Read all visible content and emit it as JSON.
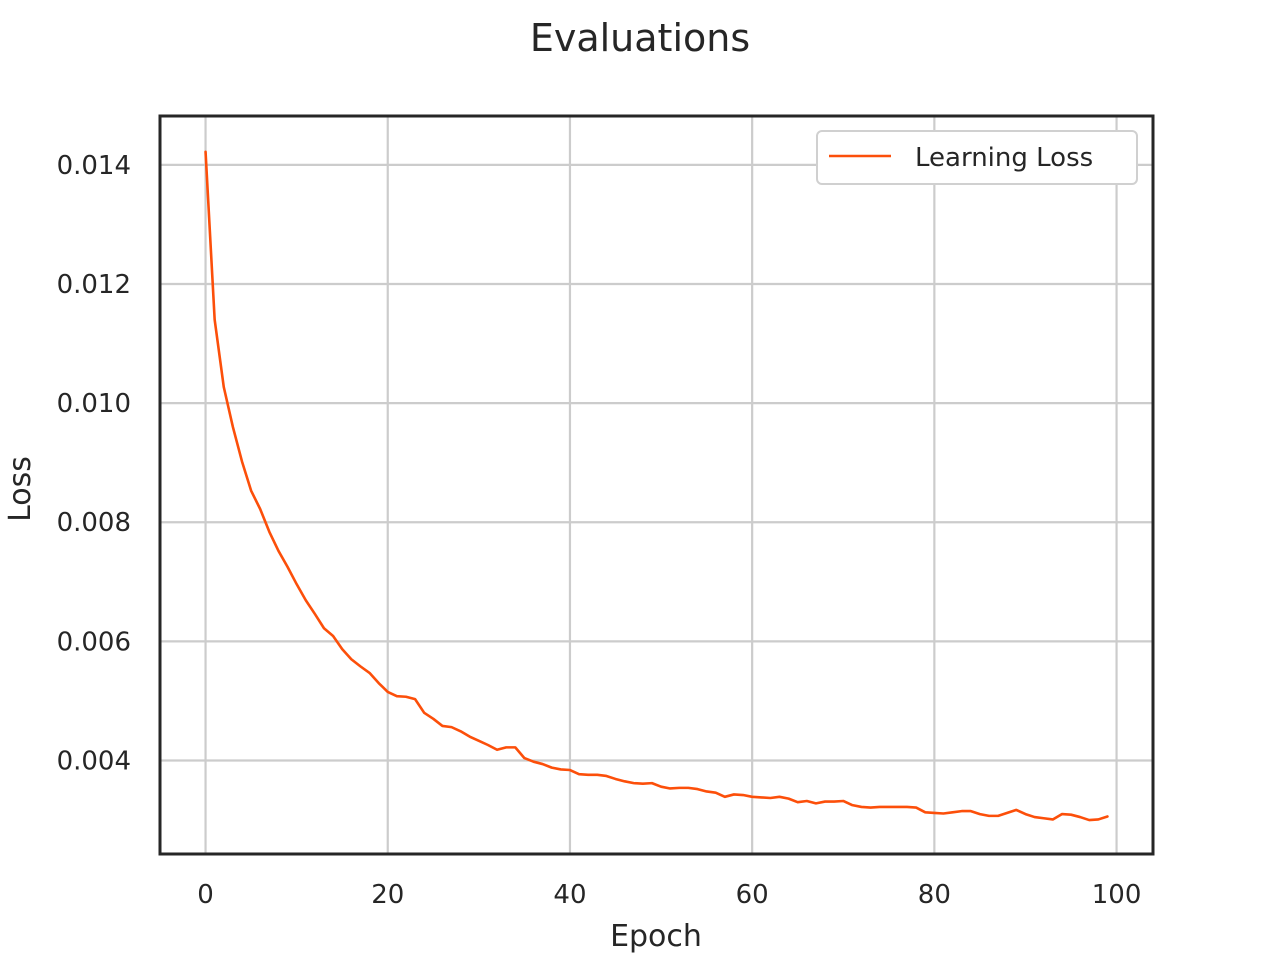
{
  "colors": {
    "series": "#fc4f0a",
    "text": "#262626",
    "grid": "#cccccc",
    "axes": "#262626"
  },
  "chart_data": {
    "type": "line",
    "title": "Evaluations",
    "xlabel": "Epoch",
    "ylabel": "Loss",
    "xlim": [
      -5,
      104
    ],
    "ylim": [
      0.00243,
      0.01482
    ],
    "xticks": [
      0,
      20,
      40,
      60,
      80,
      100
    ],
    "xtick_labels": [
      "0",
      "20",
      "40",
      "60",
      "80",
      "100"
    ],
    "yticks": [
      0.004,
      0.006,
      0.008,
      0.01,
      0.012,
      0.014
    ],
    "ytick_labels": [
      "0.004",
      "0.006",
      "0.008",
      "0.010",
      "0.012",
      "0.014"
    ],
    "grid": true,
    "legend_position": "top-right",
    "series": [
      {
        "name": "Learning Loss",
        "x": [
          0,
          1,
          2,
          3,
          4,
          5,
          6,
          7,
          8,
          9,
          10,
          11,
          12,
          13,
          14,
          15,
          16,
          17,
          18,
          19,
          20,
          21,
          22,
          23,
          24,
          25,
          26,
          27,
          28,
          29,
          30,
          31,
          32,
          33,
          34,
          35,
          36,
          37,
          38,
          39,
          40,
          41,
          42,
          43,
          44,
          45,
          46,
          47,
          48,
          49,
          50,
          51,
          52,
          53,
          54,
          55,
          56,
          57,
          58,
          59,
          60,
          61,
          62,
          63,
          64,
          65,
          66,
          67,
          68,
          69,
          70,
          71,
          72,
          73,
          74,
          75,
          76,
          77,
          78,
          79,
          80,
          81,
          82,
          83,
          84,
          85,
          86,
          87,
          88,
          89,
          90,
          91,
          92,
          93,
          94,
          95,
          96,
          97,
          98,
          99
        ],
        "values": [
          0.01422,
          0.0114,
          0.01027,
          0.0096,
          0.00902,
          0.00853,
          0.00822,
          0.00784,
          0.00752,
          0.00725,
          0.00696,
          0.00669,
          0.00646,
          0.00622,
          0.00609,
          0.00587,
          0.0057,
          0.00558,
          0.00547,
          0.0053,
          0.00515,
          0.00508,
          0.00507,
          0.00503,
          0.0048,
          0.0047,
          0.00458,
          0.00456,
          0.00449,
          0.0044,
          0.00433,
          0.00426,
          0.00418,
          0.00422,
          0.00422,
          0.00404,
          0.00398,
          0.00394,
          0.00388,
          0.00385,
          0.00384,
          0.00377,
          0.00376,
          0.00376,
          0.00374,
          0.00369,
          0.00365,
          0.00362,
          0.00361,
          0.00362,
          0.00356,
          0.00353,
          0.00354,
          0.00354,
          0.00352,
          0.00348,
          0.00346,
          0.00339,
          0.00343,
          0.00342,
          0.00339,
          0.00338,
          0.00337,
          0.00339,
          0.00336,
          0.0033,
          0.00332,
          0.00328,
          0.00331,
          0.00331,
          0.00332,
          0.00325,
          0.00322,
          0.00321,
          0.00322,
          0.00322,
          0.00322,
          0.00322,
          0.00321,
          0.00313,
          0.00312,
          0.00311,
          0.00313,
          0.00315,
          0.00315,
          0.0031,
          0.00307,
          0.00307,
          0.00312,
          0.00317,
          0.0031,
          0.00305,
          0.00303,
          0.00301,
          0.0031,
          0.00309,
          0.00305,
          0.003,
          0.00301,
          0.00306
        ]
      }
    ]
  }
}
